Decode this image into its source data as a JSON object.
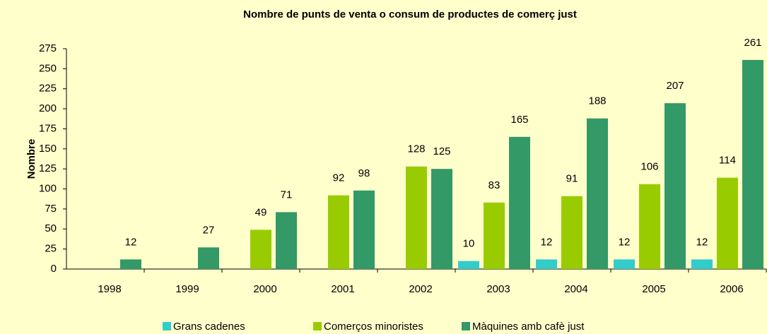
{
  "chart_data": {
    "type": "bar",
    "title": "Nombre de punts de venta o consum de productes de comerç just",
    "y_label": "Nombre",
    "categories": [
      "1998",
      "1999",
      "2000",
      "2001",
      "2002",
      "2003",
      "2004",
      "2005",
      "2006"
    ],
    "series": [
      {
        "name": "Grans cadenes",
        "color": "#33cccc",
        "values": [
          null,
          null,
          null,
          null,
          null,
          10,
          12,
          12,
          12
        ]
      },
      {
        "name": "Comerços minoristes",
        "color": "#99cc00",
        "values": [
          null,
          null,
          49,
          92,
          128,
          83,
          91,
          106,
          114
        ]
      },
      {
        "name": "Màquines amb cafè just",
        "color": "#339966",
        "values": [
          12,
          27,
          71,
          98,
          125,
          165,
          188,
          207,
          261
        ]
      }
    ],
    "ylim": [
      0,
      275
    ],
    "yticks": [
      0,
      25,
      50,
      75,
      100,
      125,
      150,
      175,
      200,
      225,
      250,
      275
    ],
    "legend": "bottom"
  }
}
